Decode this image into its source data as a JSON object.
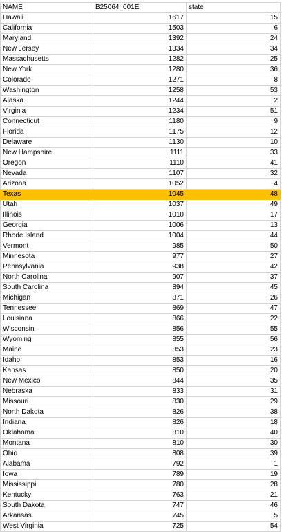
{
  "sheet": {
    "headers": [
      "NAME",
      "B25064_001E",
      "state"
    ],
    "highlight_color": "#ffc000",
    "selected_row": "Texas",
    "rows": [
      {
        "name": "Hawaii",
        "value": "1617",
        "state": "15"
      },
      {
        "name": "California",
        "value": "1503",
        "state": "6"
      },
      {
        "name": "Maryland",
        "value": "1392",
        "state": "24"
      },
      {
        "name": "New Jersey",
        "value": "1334",
        "state": "34"
      },
      {
        "name": "Massachusetts",
        "value": "1282",
        "state": "25"
      },
      {
        "name": "New York",
        "value": "1280",
        "state": "36"
      },
      {
        "name": "Colorado",
        "value": "1271",
        "state": "8"
      },
      {
        "name": "Washington",
        "value": "1258",
        "state": "53"
      },
      {
        "name": "Alaska",
        "value": "1244",
        "state": "2"
      },
      {
        "name": "Virginia",
        "value": "1234",
        "state": "51"
      },
      {
        "name": "Connecticut",
        "value": "1180",
        "state": "9"
      },
      {
        "name": "Florida",
        "value": "1175",
        "state": "12"
      },
      {
        "name": "Delaware",
        "value": "1130",
        "state": "10"
      },
      {
        "name": "New Hampshire",
        "value": "1111",
        "state": "33"
      },
      {
        "name": "Oregon",
        "value": "1110",
        "state": "41"
      },
      {
        "name": "Nevada",
        "value": "1107",
        "state": "32"
      },
      {
        "name": "Arizona",
        "value": "1052",
        "state": "4"
      },
      {
        "name": "Texas",
        "value": "1045",
        "state": "48"
      },
      {
        "name": "Utah",
        "value": "1037",
        "state": "49"
      },
      {
        "name": "Illinois",
        "value": "1010",
        "state": "17"
      },
      {
        "name": "Georgia",
        "value": "1006",
        "state": "13"
      },
      {
        "name": "Rhode Island",
        "value": "1004",
        "state": "44"
      },
      {
        "name": "Vermont",
        "value": "985",
        "state": "50"
      },
      {
        "name": "Minnesota",
        "value": "977",
        "state": "27"
      },
      {
        "name": "Pennsylvania",
        "value": "938",
        "state": "42"
      },
      {
        "name": "North Carolina",
        "value": "907",
        "state": "37"
      },
      {
        "name": "South Carolina",
        "value": "894",
        "state": "45"
      },
      {
        "name": "Michigan",
        "value": "871",
        "state": "26"
      },
      {
        "name": "Tennessee",
        "value": "869",
        "state": "47"
      },
      {
        "name": "Louisiana",
        "value": "866",
        "state": "22"
      },
      {
        "name": "Wisconsin",
        "value": "856",
        "state": "55"
      },
      {
        "name": "Wyoming",
        "value": "855",
        "state": "56"
      },
      {
        "name": "Maine",
        "value": "853",
        "state": "23"
      },
      {
        "name": "Idaho",
        "value": "853",
        "state": "16"
      },
      {
        "name": "Kansas",
        "value": "850",
        "state": "20"
      },
      {
        "name": "New Mexico",
        "value": "844",
        "state": "35"
      },
      {
        "name": "Nebraska",
        "value": "833",
        "state": "31"
      },
      {
        "name": "Missouri",
        "value": "830",
        "state": "29"
      },
      {
        "name": "North Dakota",
        "value": "826",
        "state": "38"
      },
      {
        "name": "Indiana",
        "value": "826",
        "state": "18"
      },
      {
        "name": "Oklahoma",
        "value": "810",
        "state": "40"
      },
      {
        "name": "Montana",
        "value": "810",
        "state": "30"
      },
      {
        "name": "Ohio",
        "value": "808",
        "state": "39"
      },
      {
        "name": "Alabama",
        "value": "792",
        "state": "1"
      },
      {
        "name": "Iowa",
        "value": "789",
        "state": "19"
      },
      {
        "name": "Mississippi",
        "value": "780",
        "state": "28"
      },
      {
        "name": "Kentucky",
        "value": "763",
        "state": "21"
      },
      {
        "name": "South Dakota",
        "value": "747",
        "state": "46"
      },
      {
        "name": "Arkansas",
        "value": "745",
        "state": "5"
      },
      {
        "name": "West Virginia",
        "value": "725",
        "state": "54"
      }
    ]
  }
}
